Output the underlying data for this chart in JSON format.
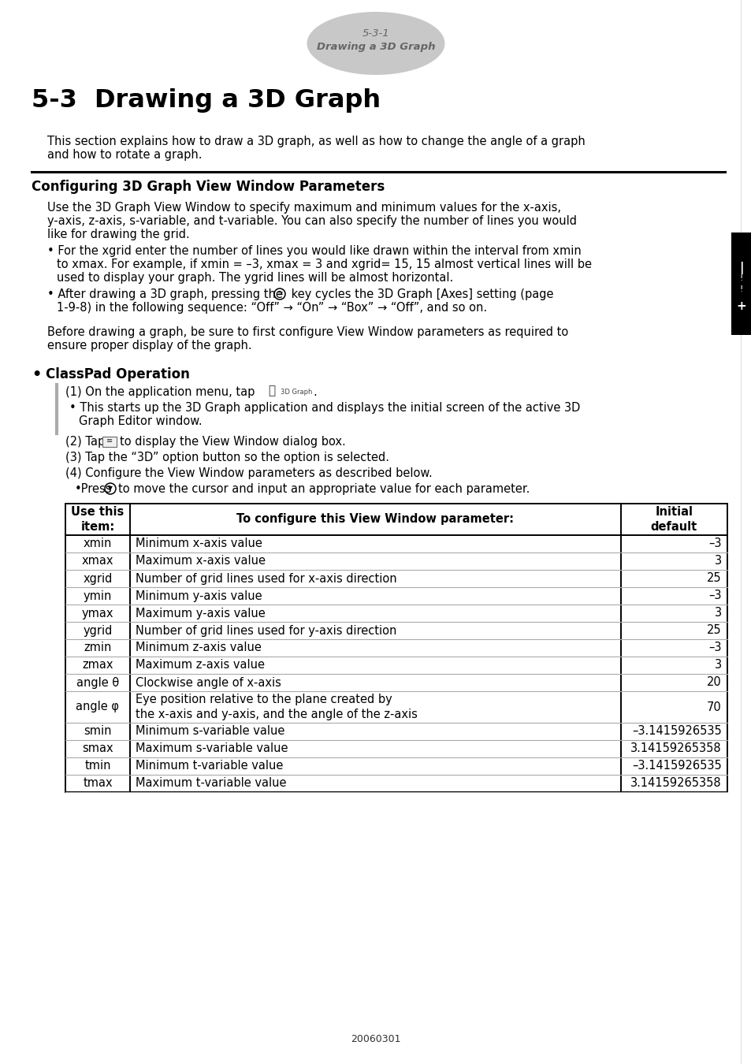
{
  "page_header_number": "5-3-1",
  "page_header_text": "Drawing a 3D Graph",
  "chapter_title": "5-3  Drawing a 3D Graph",
  "intro_text": "This section explains how to draw a 3D graph, as well as how to change the angle of a graph\nand how to rotate a graph.",
  "section_title": "Configuring 3D Graph View Window Parameters",
  "body_para1_line1": "Use the 3D Graph View Window to specify maximum and minimum values for the x-axis,",
  "body_para1_line2": "y-axis, z-axis, s-variable, and t-variable. You can also specify the number of lines you would",
  "body_para1_line3": "like for drawing the grid.",
  "bullet1_line1": "For the xgrid enter the number of lines you would like drawn within the interval from xmin",
  "bullet1_line2": "to xmax. For example, if xmin = –3, xmax = 3 and xgrid= 15, 15 almost vertical lines will be",
  "bullet1_line3": "used to display your graph. The ygrid lines will be almost horizontal.",
  "bullet2_line1": "After drawing a 3D graph, pressing the ≡ key cycles the 3D Graph [Axes] setting (page",
  "bullet2_line2": "1-9-8) in the following sequence: “Off” → “On” → “Box” → “Off”, and so on.",
  "before_text_line1": "Before drawing a graph, be sure to first configure View Window parameters as required to",
  "before_text_line2": "ensure proper display of the graph.",
  "classpad_title": "ClassPad Operation",
  "step1": "(1) On the application menu, tap",
  "step1_sub_line1": "This starts up the 3D Graph application and displays the initial screen of the active 3D",
  "step1_sub_line2": "Graph Editor window.",
  "step2": "(2) Tap      to display the View Window dialog box.",
  "step3": "(3) Tap the “3D” option button so the option is selected.",
  "step4": "(4) Configure the View Window parameters as described below.",
  "step4_sub": "•Press      to move the cursor and input an appropriate value for each parameter.",
  "table_col1": [
    "xmin",
    "xmax",
    "xgrid",
    "ymin",
    "ymax",
    "ygrid",
    "zmin",
    "zmax",
    "angle θ",
    "angle φ",
    "smin",
    "smax",
    "tmin",
    "tmax"
  ],
  "table_col2": [
    "Minimum x-axis value",
    "Maximum x-axis value",
    "Number of grid lines used for x-axis direction",
    "Minimum y-axis value",
    "Maximum y-axis value",
    "Number of grid lines used for y-axis direction",
    "Minimum z-axis value",
    "Maximum z-axis value",
    "Clockwise angle of x-axis",
    "Eye position relative to the plane created by\nthe x-axis and y-axis, and the angle of the z-axis",
    "Minimum s-variable value",
    "Maximum s-variable value",
    "Minimum t-variable value",
    "Maximum t-variable value"
  ],
  "table_col3": [
    "–3",
    "3",
    "25",
    "–3",
    "3",
    "25",
    "–3",
    "3",
    "20",
    "70",
    "–3.1415926535",
    "3.14159265358",
    "–3.1415926535",
    "3.14159265358"
  ],
  "page_number": "20060301",
  "bg_color": "#ffffff",
  "text_color": "#000000",
  "tab_color": "#000000",
  "header_ellipse_color": "#c8c8c8",
  "header_text_color": "#666666",
  "rule_color": "#000000",
  "table_border_color": "#000000",
  "table_divider_color": "#999999"
}
